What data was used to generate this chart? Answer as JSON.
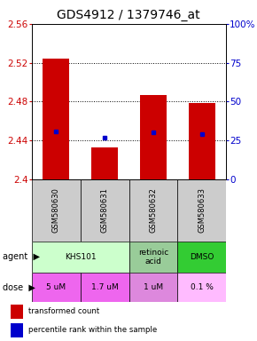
{
  "title": "GDS4912 / 1379746_at",
  "samples": [
    "GSM580630",
    "GSM580631",
    "GSM580632",
    "GSM580633"
  ],
  "bar_bottoms": [
    2.4,
    2.4,
    2.4,
    2.4
  ],
  "bar_tops": [
    2.524,
    2.433,
    2.487,
    2.479
  ],
  "blue_dots": [
    2.449,
    2.443,
    2.448,
    2.447
  ],
  "ylim": [
    2.4,
    2.56
  ],
  "yticks_left": [
    2.4,
    2.44,
    2.48,
    2.52,
    2.56
  ],
  "yticks_right_vals": [
    0,
    25,
    50,
    75,
    100
  ],
  "yticks_right_pos": [
    2.4,
    2.44,
    2.48,
    2.52,
    2.56
  ],
  "bar_color": "#cc0000",
  "dot_color": "#0000cc",
  "agent_info": [
    {
      "start": 0,
      "end": 1,
      "name": "KHS101",
      "color": "#ccffcc"
    },
    {
      "start": 2,
      "end": 2,
      "name": "retinoic\nacid",
      "color": "#99cc99"
    },
    {
      "start": 3,
      "end": 3,
      "name": "DMSO",
      "color": "#33cc33"
    }
  ],
  "dose_labels": [
    "5 uM",
    "1.7 uM",
    "1 uM",
    "0.1 %"
  ],
  "dose_colors": [
    "#ee66ee",
    "#ee66ee",
    "#dd88dd",
    "#ffbbff"
  ],
  "legend_bar_label": "transformed count",
  "legend_dot_label": "percentile rank within the sample",
  "title_fontsize": 10,
  "left_label_color": "#cc0000",
  "right_label_color": "#0000cc",
  "sample_bg_color": "#cccccc",
  "grid_color": "black"
}
